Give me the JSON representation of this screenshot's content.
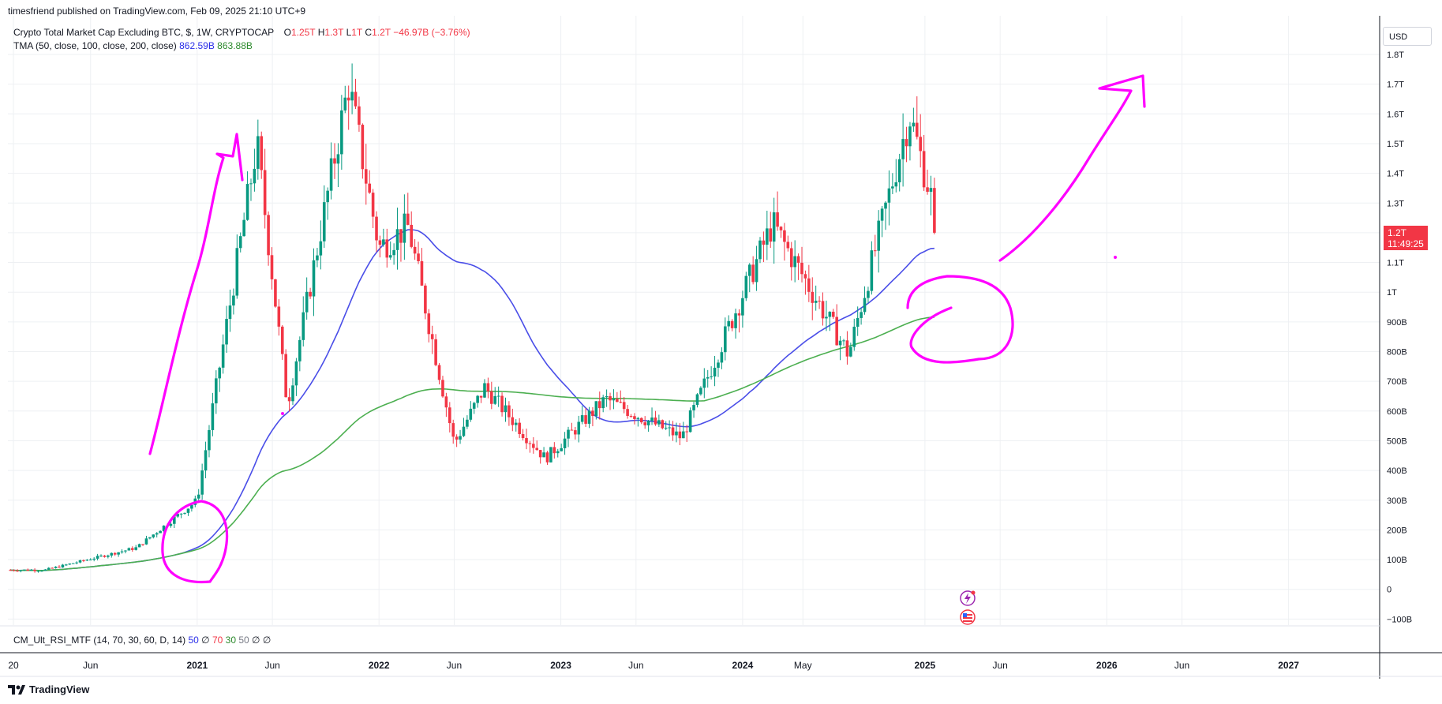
{
  "header": {
    "published": "timesfriend published on TradingView.com, Feb 09, 2025 21:10 UTC+9"
  },
  "legend": {
    "symbol": "Crypto Total Market Cap Excluding BTC, $, 1W, CRYPTOCAP",
    "o_label": "O",
    "o_value": "1.25T",
    "h_label": "H",
    "h_value": "1.3T",
    "l_label": "L",
    "l_value": "1T",
    "c_label": "C",
    "c_value": "1.2T",
    "change": "−46.97B (−3.76%)",
    "tma_label": "TMA (50, close, 100, close, 200, close)",
    "tma_val1": "862.59B",
    "tma_val2": "863.88B",
    "rsi_label": "CM_Ult_RSI_MTF (14, 70, 30, 60, D, 14)",
    "rsi_vals": [
      "50",
      "∅",
      "70",
      "30",
      "50",
      "∅",
      "∅"
    ]
  },
  "price_scale": {
    "currency": "USD",
    "ticks": [
      "1.8T",
      "1.7T",
      "1.6T",
      "1.5T",
      "1.4T",
      "1.3T",
      "1.2T",
      "1.1T",
      "1T",
      "900B",
      "800B",
      "700B",
      "600B",
      "500B",
      "400B",
      "300B",
      "200B",
      "100B",
      "0",
      "−100B"
    ],
    "current_price": "1.2T",
    "countdown": "11:49:25"
  },
  "time_scale": {
    "labels": [
      "20",
      "Jun",
      "2021",
      "Jun",
      "2022",
      "Jun",
      "2023",
      "Jun",
      "2024",
      "May",
      "2025",
      "Jun",
      "2026",
      "Jun",
      "2027"
    ]
  },
  "footer": {
    "brand": "TradingView"
  },
  "colors": {
    "up": "#089981",
    "down": "#f23645",
    "ma_blue": "#4a4ee8",
    "ma_green": "#4caf50",
    "drawing": "#ff00ff",
    "grid": "#eef0f3"
  },
  "chart_data": {
    "type": "candlestick",
    "title": "Crypto Total Market Cap Excluding BTC, $, 1W, CRYPTOCAP",
    "y_unit": "USD (billions)",
    "ylim": [
      -130,
      1850
    ],
    "x_range": [
      "2020-01",
      "2027-07"
    ],
    "grid": true,
    "key_points_close_B": [
      {
        "date": "2020-03",
        "value": 65
      },
      {
        "date": "2020-09",
        "value": 140
      },
      {
        "date": "2021-01",
        "value": 300
      },
      {
        "date": "2021-05",
        "value": 1500
      },
      {
        "date": "2021-07",
        "value": 620
      },
      {
        "date": "2021-11",
        "value": 1700
      },
      {
        "date": "2022-01",
        "value": 1150
      },
      {
        "date": "2022-03",
        "value": 1220
      },
      {
        "date": "2022-06",
        "value": 490
      },
      {
        "date": "2022-08",
        "value": 680
      },
      {
        "date": "2022-12",
        "value": 440
      },
      {
        "date": "2023-04",
        "value": 640
      },
      {
        "date": "2023-09",
        "value": 510
      },
      {
        "date": "2024-03",
        "value": 1230
      },
      {
        "date": "2024-08",
        "value": 790
      },
      {
        "date": "2024-12",
        "value": 1600
      },
      {
        "date": "2025-02",
        "value": 1200
      }
    ],
    "series": [
      {
        "name": "TMA 50",
        "color": "#4a4ee8",
        "value_latest": 862.59
      },
      {
        "name": "TMA 200",
        "color": "#4caf50",
        "value_latest": 863.88
      }
    ],
    "annotations": [
      "magenta freehand circles at early-2021 breakout and 2025 MA retest",
      "magenta arrows pointing up"
    ]
  }
}
